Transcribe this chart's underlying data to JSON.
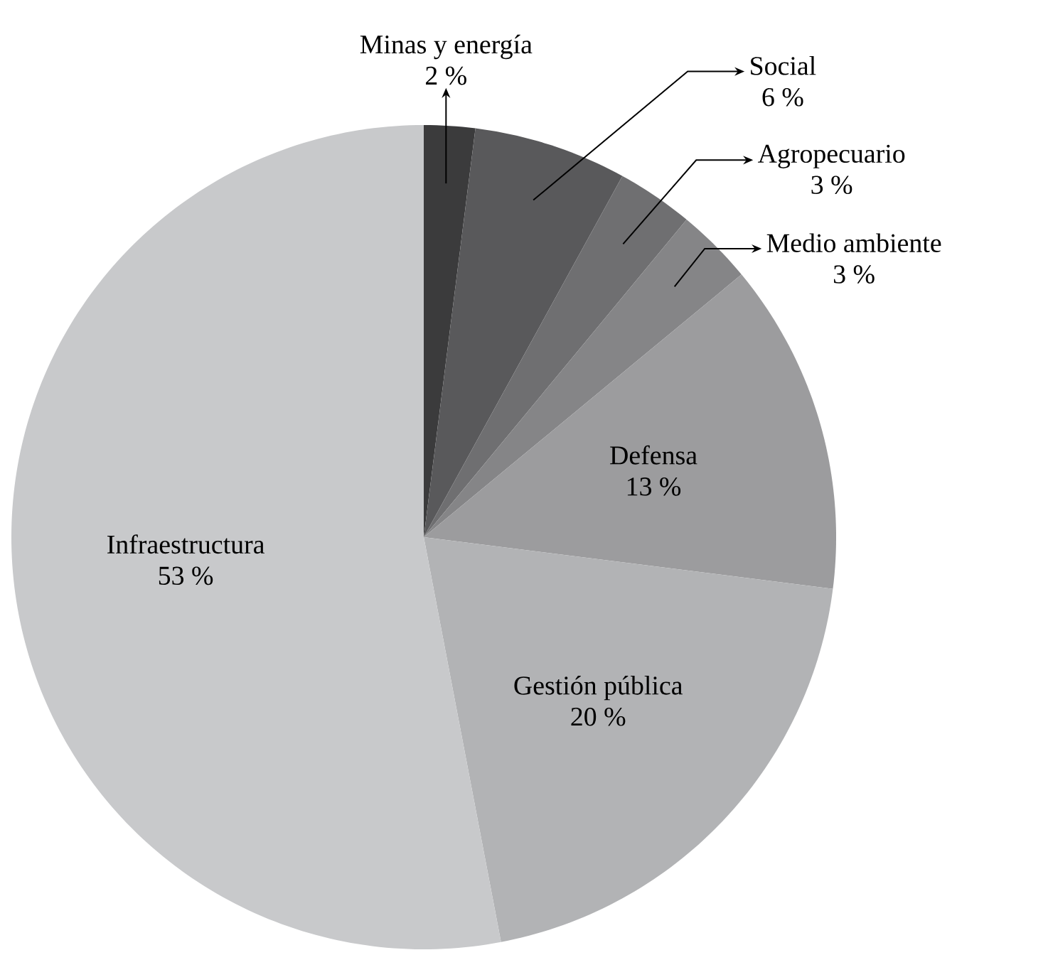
{
  "chart_data": {
    "type": "pie",
    "categories": [
      "Minas y energía",
      "Social",
      "Agropecuario",
      "Medio ambiente",
      "Defensa",
      "Gestión pública",
      "Infraestructura"
    ],
    "values": [
      2,
      6,
      3,
      3,
      13,
      20,
      53
    ],
    "value_labels": [
      "2 %",
      "6 %",
      "3 %",
      "3 %",
      "13 %",
      "20 %",
      "53 %"
    ],
    "colors": [
      "#3b3b3c",
      "#59595b",
      "#6f6f71",
      "#858587",
      "#9c9c9e",
      "#b2b3b5",
      "#c8c9cb"
    ]
  }
}
